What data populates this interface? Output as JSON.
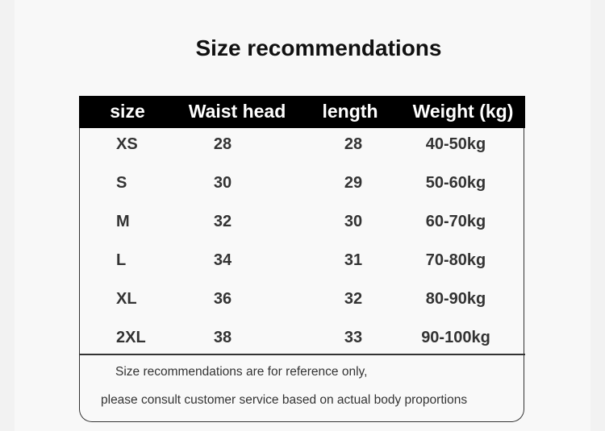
{
  "title": "Size recommendations",
  "table": {
    "headers": [
      "size",
      "Waist head",
      "length",
      "Weight (kg)"
    ],
    "rows": [
      [
        "XS",
        "28",
        "28",
        "40-50kg"
      ],
      [
        "S",
        "30",
        "29",
        "50-60kg"
      ],
      [
        "M",
        "32",
        "30",
        "60-70kg"
      ],
      [
        "L",
        "34",
        "31",
        "70-80kg"
      ],
      [
        "XL",
        "36",
        "32",
        "80-90kg"
      ],
      [
        "2XL",
        "38",
        "33",
        "90-100kg"
      ]
    ]
  },
  "notes": [
    "Size recommendations are for reference only,",
    "please consult customer service based on actual body proportions"
  ],
  "colors": {
    "header_bg": "#000000",
    "header_text": "#ffffff",
    "body_text": "#333333"
  }
}
